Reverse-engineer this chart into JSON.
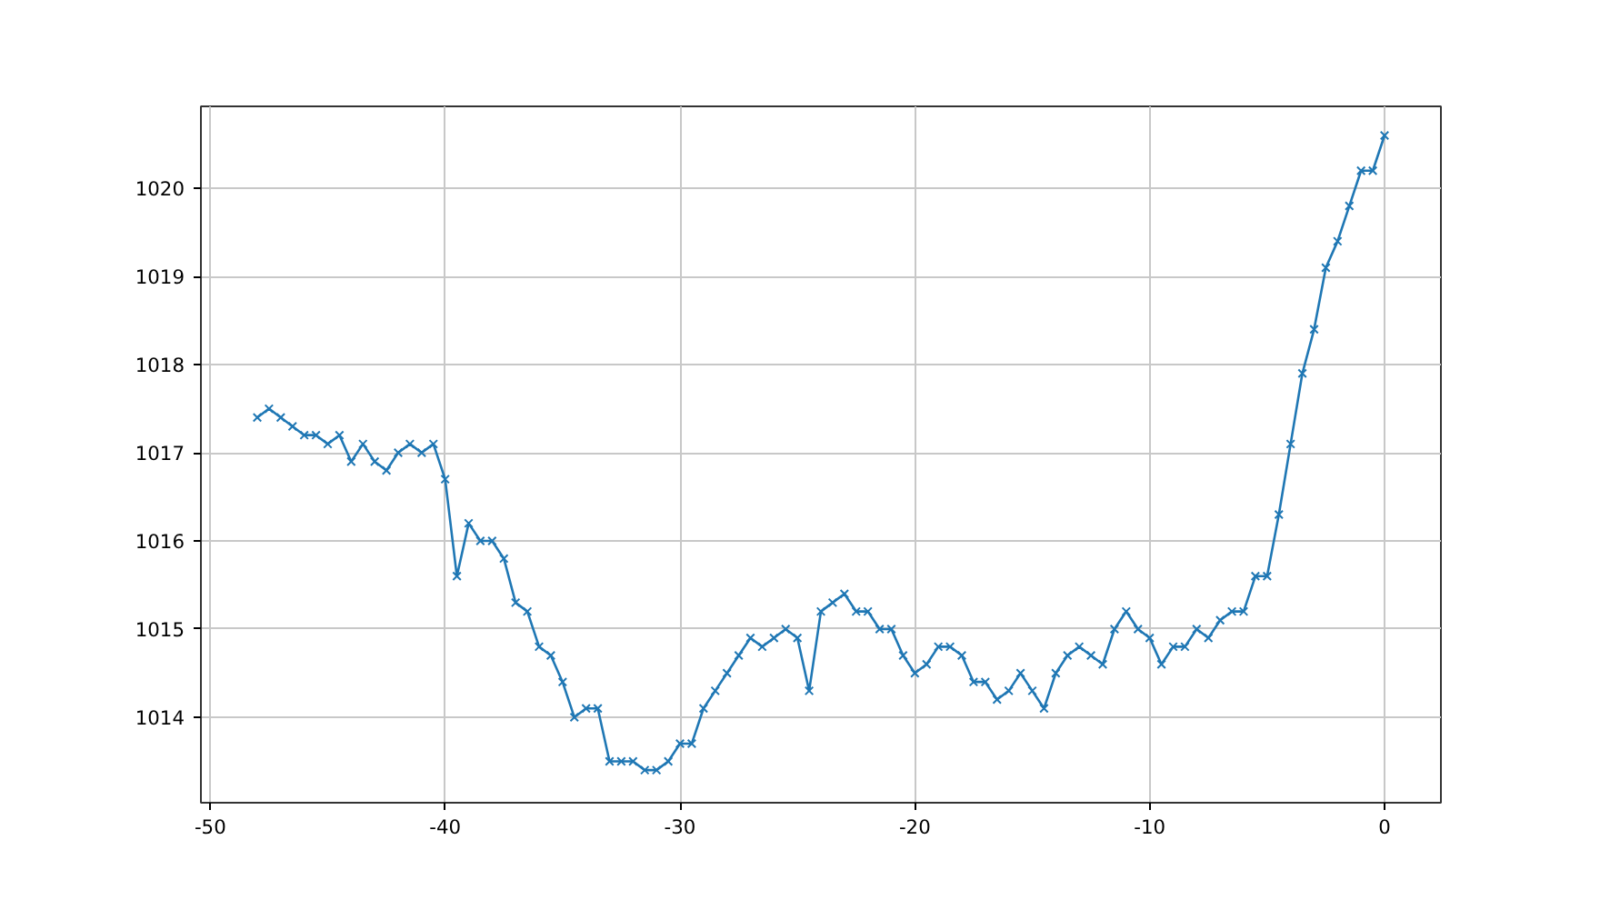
{
  "chart_data": {
    "type": "line",
    "marker": "cross",
    "line_style": "solid",
    "grid": true,
    "x": [
      -48,
      -47.5,
      -47,
      -46.5,
      -46,
      -45.5,
      -45,
      -44.5,
      -44,
      -43.5,
      -43,
      -42.5,
      -42,
      -41.5,
      -41,
      -40.5,
      -40,
      -39.5,
      -39,
      -38.5,
      -38,
      -37.5,
      -37,
      -36.5,
      -36,
      -35.5,
      -35,
      -34.5,
      -34,
      -33.5,
      -33,
      -32.5,
      -32,
      -31.5,
      -31,
      -30.5,
      -30,
      -29.5,
      -29,
      -28.5,
      -28,
      -27.5,
      -27,
      -26.5,
      -26,
      -25.5,
      -25,
      -24.5,
      -24,
      -23.5,
      -23,
      -22.5,
      -22,
      -21.5,
      -21,
      -20.5,
      -20,
      -19.5,
      -19,
      -18.5,
      -18,
      -17.5,
      -17,
      -16.5,
      -16,
      -15.5,
      -15,
      -14.5,
      -14,
      -13.5,
      -13,
      -12.5,
      -12,
      -11.5,
      -11,
      -10.5,
      -10,
      -9.5,
      -9,
      -8.5,
      -8,
      -7.5,
      -7,
      -6.5,
      -6,
      -5.5,
      -5,
      -4.5,
      -4,
      -3.5,
      -3,
      -2.5,
      -2,
      -1.5,
      -1,
      -0.5,
      0
    ],
    "series": [
      {
        "color": "#1f77b4",
        "values": [
          1017.4,
          1017.5,
          1017.4,
          1017.3,
          1017.2,
          1017.2,
          1017.1,
          1017.2,
          1016.9,
          1017.1,
          1016.9,
          1016.8,
          1017.0,
          1017.1,
          1017.0,
          1017.1,
          1016.7,
          1015.6,
          1016.2,
          1016.0,
          1016.0,
          1015.8,
          1015.3,
          1015.2,
          1014.8,
          1014.7,
          1014.4,
          1014.0,
          1014.1,
          1014.1,
          1013.5,
          1013.5,
          1013.5,
          1013.4,
          1013.4,
          1013.5,
          1013.7,
          1013.7,
          1014.1,
          1014.3,
          1014.5,
          1014.7,
          1014.9,
          1014.8,
          1014.9,
          1015.0,
          1014.9,
          1014.3,
          1015.2,
          1015.3,
          1015.4,
          1015.2,
          1015.2,
          1015.0,
          1015.0,
          1014.7,
          1014.5,
          1014.6,
          1014.8,
          1014.8,
          1014.7,
          1014.4,
          1014.4,
          1014.2,
          1014.3,
          1014.5,
          1014.3,
          1014.1,
          1014.5,
          1014.7,
          1014.8,
          1014.7,
          1014.6,
          1015.0,
          1015.2,
          1015.0,
          1014.9,
          1014.6,
          1014.8,
          1014.8,
          1015.0,
          1014.9,
          1015.1,
          1015.2,
          1015.2,
          1015.6,
          1015.6,
          1016.3,
          1017.1,
          1017.9,
          1018.4,
          1019.1,
          1019.4,
          1019.8,
          1020.2,
          1020.2,
          1020.6
        ]
      }
    ],
    "xlim": [
      -50.4,
      2.4
    ],
    "ylim": [
      1013.03,
      1020.93
    ],
    "xticks": [
      -50,
      -40,
      -30,
      -20,
      -10,
      0
    ],
    "yticks": [
      1014,
      1015,
      1016,
      1017,
      1018,
      1019,
      1020
    ]
  }
}
